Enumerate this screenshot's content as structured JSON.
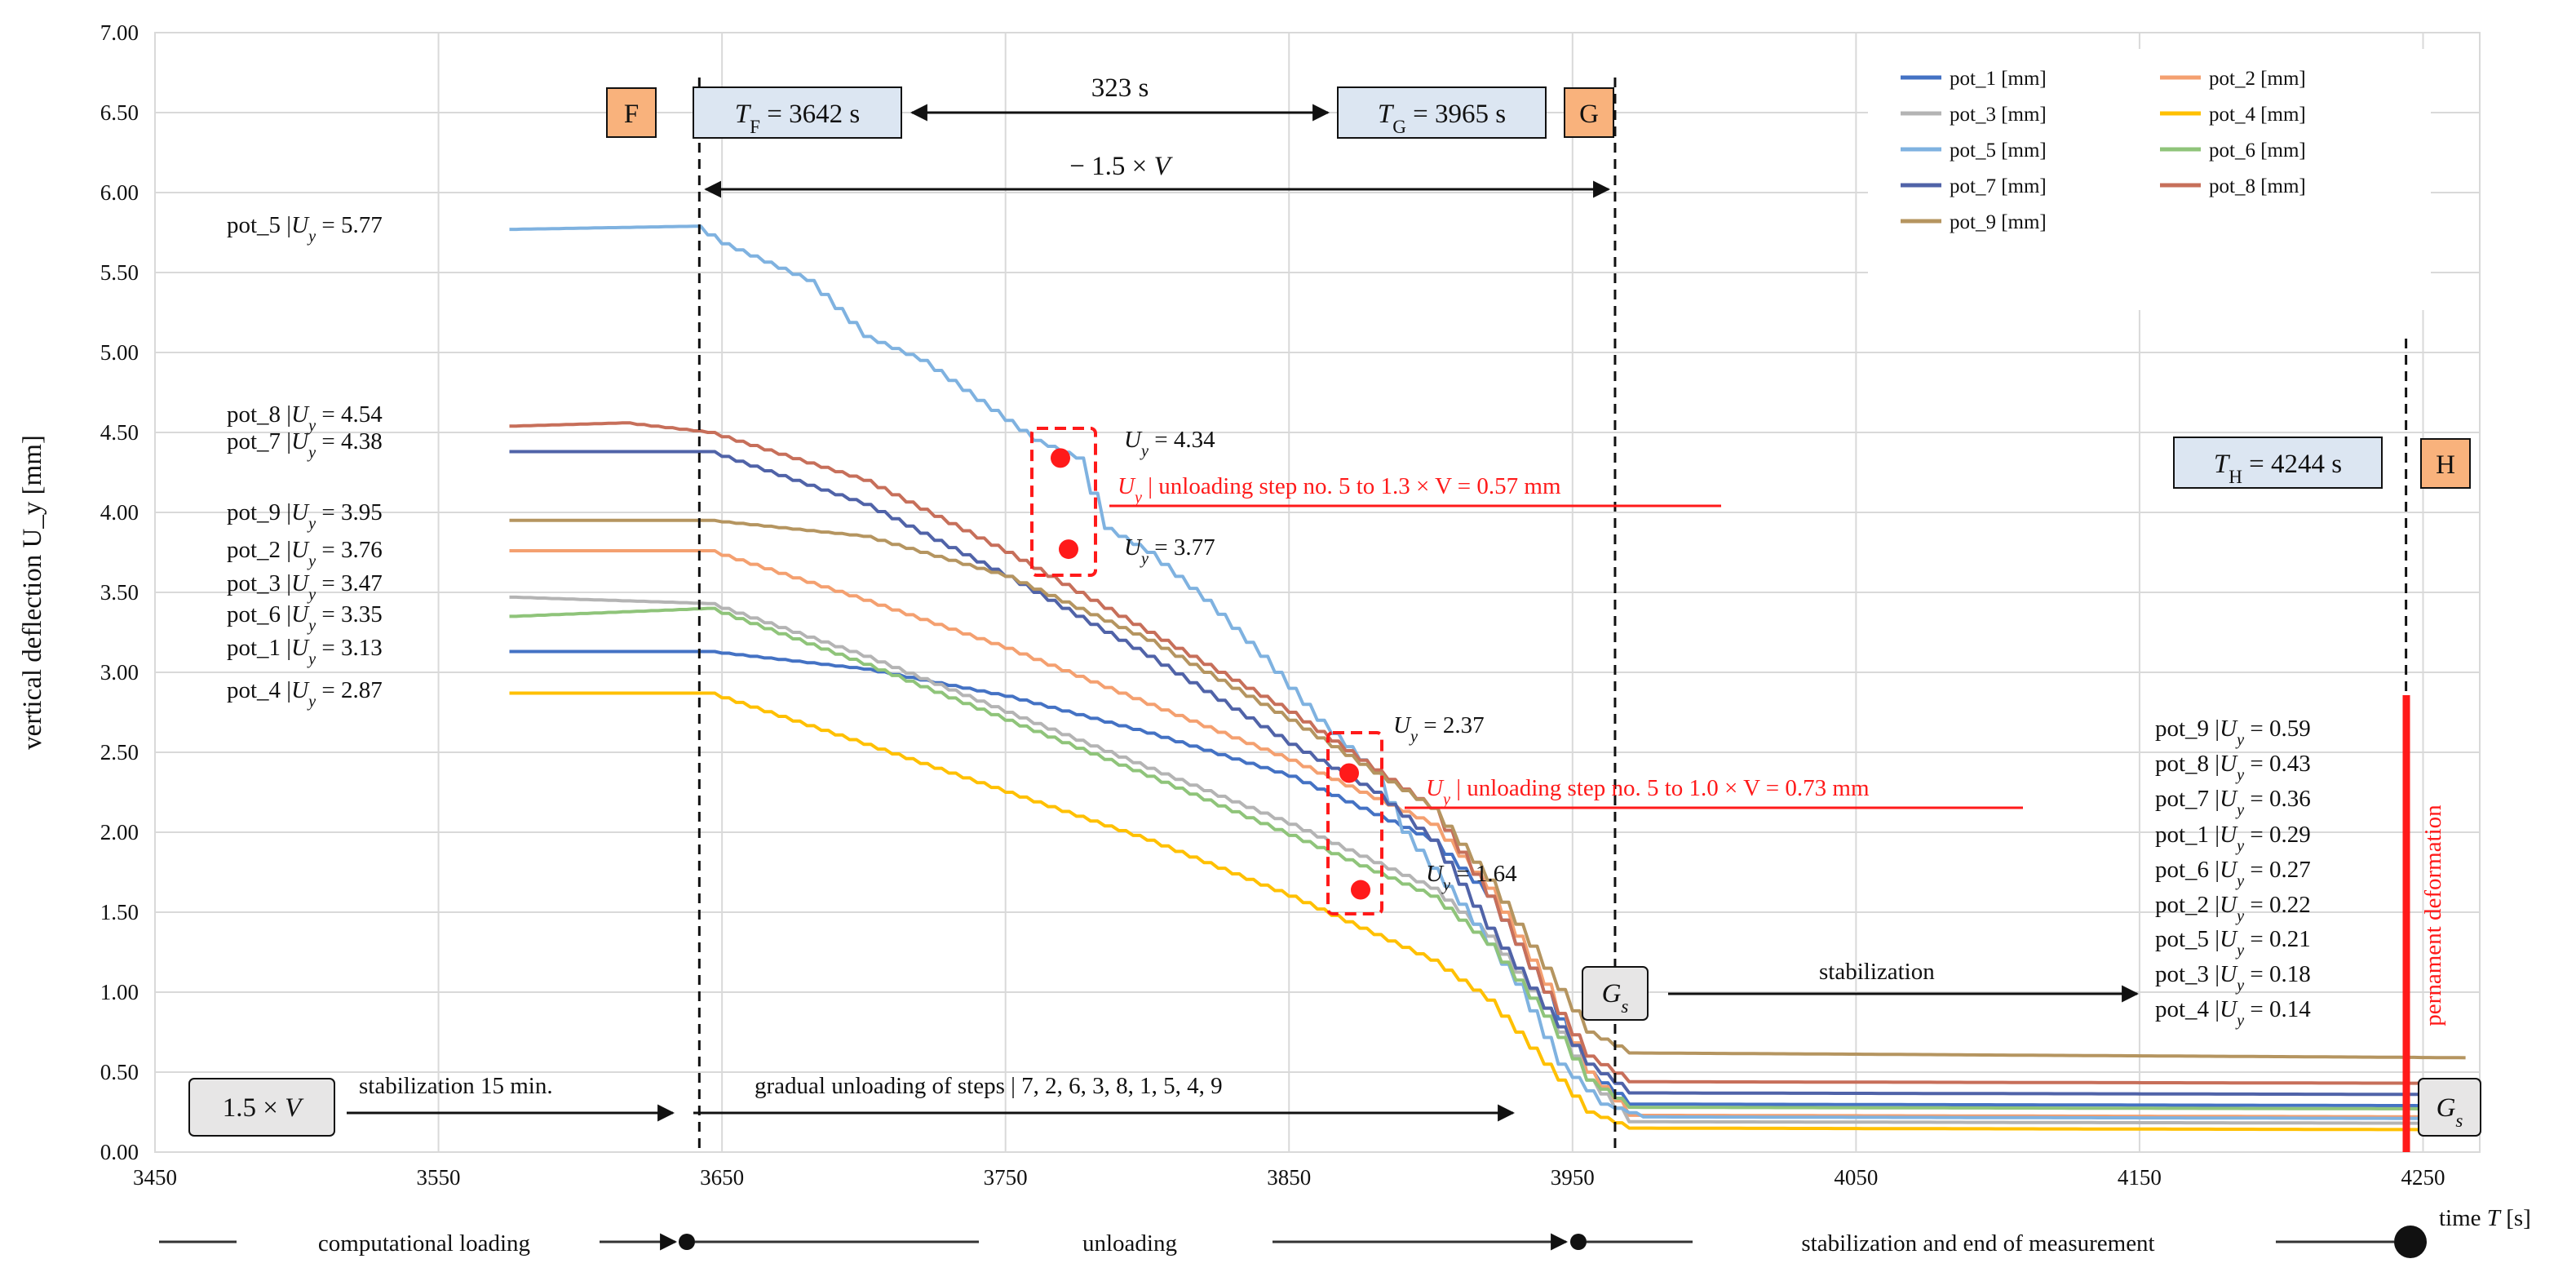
{
  "chart_data": {
    "type": "line",
    "title": "",
    "xlabel": "time T [s]",
    "ylabel": "vertical deflection U_y [mm]",
    "xlim": [
      3450,
      4270
    ],
    "ylim": [
      0,
      7
    ],
    "x_ticks": [
      "3450",
      "3550",
      "3650",
      "3750",
      "3850",
      "3950",
      "4050",
      "4150",
      "4250"
    ],
    "y_ticks": [
      "0.00",
      "0.50",
      "1.00",
      "1.50",
      "2.00",
      "2.50",
      "3.00",
      "3.50",
      "4.00",
      "4.50",
      "5.00",
      "5.50",
      "6.00",
      "6.50",
      "7.00"
    ],
    "legend": [
      "pot_1 [mm]",
      "pot_2 [mm]",
      "pot_3 [mm]",
      "pot_4 [mm]",
      "pot_5 [mm]",
      "pot_6 [mm]",
      "pot_7 [mm]",
      "pot_8 [mm]",
      "pot_9 [mm]"
    ],
    "series": [
      {
        "name": "pot_1 [mm]",
        "color": "#4472c4",
        "x": [
          3575,
          3645,
          3700,
          3750,
          3800,
          3850,
          3900,
          3920,
          3940,
          3955,
          3970,
          4265
        ],
        "y": [
          3.13,
          3.13,
          3.02,
          2.85,
          2.62,
          2.35,
          1.95,
          1.6,
          1.0,
          0.5,
          0.3,
          0.29
        ]
      },
      {
        "name": "pot_2 [mm]",
        "color": "#f4a070",
        "x": [
          3575,
          3645,
          3700,
          3750,
          3800,
          3850,
          3900,
          3920,
          3940,
          3955,
          3970,
          4265
        ],
        "y": [
          3.76,
          3.76,
          3.45,
          3.15,
          2.8,
          2.45,
          2.05,
          1.65,
          1.05,
          0.5,
          0.23,
          0.22
        ]
      },
      {
        "name": "pot_3 [mm]",
        "color": "#b4b4b4",
        "x": [
          3575,
          3645,
          3700,
          3750,
          3800,
          3850,
          3900,
          3920,
          3940,
          3955,
          3970,
          4265
        ],
        "y": [
          3.47,
          3.43,
          3.1,
          2.75,
          2.4,
          2.05,
          1.65,
          1.35,
          0.9,
          0.45,
          0.19,
          0.18
        ]
      },
      {
        "name": "pot_4 [mm]",
        "color": "#ffc000",
        "x": [
          3575,
          3645,
          3700,
          3750,
          3800,
          3850,
          3900,
          3920,
          3940,
          3955,
          3970,
          4265
        ],
        "y": [
          2.87,
          2.87,
          2.55,
          2.25,
          1.95,
          1.6,
          1.2,
          0.95,
          0.55,
          0.25,
          0.15,
          0.14
        ]
      },
      {
        "name": "pot_5 [mm]",
        "color": "#7fb2e0",
        "x": [
          3575,
          3640,
          3650,
          3680,
          3700,
          3720,
          3740,
          3760,
          3775,
          3785,
          3800,
          3820,
          3840,
          3860,
          3880,
          3890,
          3910,
          3930,
          3945,
          3960,
          3975,
          4265
        ],
        "y": [
          5.77,
          5.79,
          5.68,
          5.45,
          5.1,
          4.95,
          4.7,
          4.45,
          4.34,
          3.9,
          3.75,
          3.45,
          3.1,
          2.7,
          2.37,
          2.0,
          1.55,
          1.05,
          0.55,
          0.3,
          0.22,
          0.21
        ]
      },
      {
        "name": "pot_6 [mm]",
        "color": "#8fc47a",
        "x": [
          3575,
          3645,
          3700,
          3750,
          3800,
          3850,
          3900,
          3920,
          3940,
          3955,
          3970,
          4265
        ],
        "y": [
          3.35,
          3.4,
          3.05,
          2.7,
          2.35,
          1.98,
          1.6,
          1.3,
          0.85,
          0.45,
          0.28,
          0.27
        ]
      },
      {
        "name": "pot_7 [mm]",
        "color": "#5063a8",
        "x": [
          3575,
          3645,
          3700,
          3750,
          3800,
          3850,
          3880,
          3900,
          3920,
          3940,
          3955,
          3970,
          4265
        ],
        "y": [
          4.38,
          4.38,
          4.05,
          3.6,
          3.1,
          2.55,
          2.25,
          1.95,
          1.4,
          0.9,
          0.55,
          0.37,
          0.36
        ]
      },
      {
        "name": "pot_8 [mm]",
        "color": "#c76f5a",
        "x": [
          3575,
          3615,
          3645,
          3700,
          3750,
          3800,
          3850,
          3900,
          3920,
          3940,
          3955,
          3970,
          4265
        ],
        "y": [
          4.54,
          4.56,
          4.5,
          4.2,
          3.75,
          3.25,
          2.75,
          2.15,
          1.6,
          1.0,
          0.6,
          0.44,
          0.43
        ]
      },
      {
        "name": "pot_9 [mm]",
        "color": "#b59560",
        "x": [
          3575,
          3645,
          3700,
          3750,
          3800,
          3850,
          3900,
          3920,
          3940,
          3955,
          3970,
          4265
        ],
        "y": [
          3.95,
          3.95,
          3.85,
          3.6,
          3.2,
          2.7,
          2.15,
          1.7,
          1.15,
          0.75,
          0.62,
          0.59
        ]
      }
    ],
    "left_labels": [
      {
        "pot": "pot_5",
        "val": "5.77",
        "value": 5.77
      },
      {
        "pot": "pot_8",
        "val": "4.54",
        "value": 4.54
      },
      {
        "pot": "pot_7",
        "val": "4.38",
        "value": 4.38
      },
      {
        "pot": "pot_9",
        "val": "3.95",
        "value": 3.95
      },
      {
        "pot": "pot_2",
        "val": "3.76",
        "value": 3.76
      },
      {
        "pot": "pot_3",
        "val": "3.47",
        "value": 3.47
      },
      {
        "pot": "pot_6",
        "val": "3.35",
        "value": 3.35
      },
      {
        "pot": "pot_1",
        "val": "3.13",
        "value": 3.13
      },
      {
        "pot": "pot_4",
        "val": "2.87",
        "value": 2.87
      }
    ],
    "right_labels": [
      {
        "pot": "pot_9",
        "val": "0.59"
      },
      {
        "pot": "pot_8",
        "val": "0.43"
      },
      {
        "pot": "pot_7",
        "val": "0.36"
      },
      {
        "pot": "pot_1",
        "val": "0.29"
      },
      {
        "pot": "pot_6",
        "val": "0.27"
      },
      {
        "pot": "pot_2",
        "val": "0.22"
      },
      {
        "pot": "pot_5",
        "val": "0.21"
      },
      {
        "pot": "pot_3",
        "val": "0.18"
      },
      {
        "pot": "pot_4",
        "val": "0.14"
      }
    ],
    "vertical_markers": [
      {
        "x": 3642,
        "label": "F",
        "time_label": "= 3642 s",
        "sub": "F"
      },
      {
        "x": 3965,
        "label": "G",
        "time_label": "= 3965 s",
        "sub": "G"
      },
      {
        "x": 4244,
        "label": "H",
        "time_label": "= 4244 s",
        "sub": "H"
      }
    ],
    "interval_label": "323 s",
    "rate_label": "− 1.5 × V",
    "step_markers": [
      {
        "x": 3780,
        "y_top": 4.34,
        "y_bottom": 3.77,
        "top_label": "= 4.34",
        "bottom_label": "= 3.77",
        "note": "| unloading step no. 5 to 1.3 × V = 0.57 mm"
      },
      {
        "x": 3886,
        "y_top": 2.37,
        "y_bottom": 1.64,
        "top_label": "= 2.37",
        "bottom_label": "= 1.64",
        "note": "| unloading step no. 5 to 1.0 × V = 0.73 mm"
      }
    ],
    "annotations": {
      "load_box": "1.5 × V",
      "stabilization_15": "stabilization 15 min.",
      "gradual_unloading": "gradual unloading of steps | 7, 2, 6, 3, 8, 1, 5, 4, 9",
      "gs": "G",
      "gs_sub": "s",
      "stabilization": "stabilization",
      "permanent": "pernament deformation"
    },
    "phases": [
      "computational loading",
      "unloading",
      "stabilization and end of measurement"
    ]
  }
}
